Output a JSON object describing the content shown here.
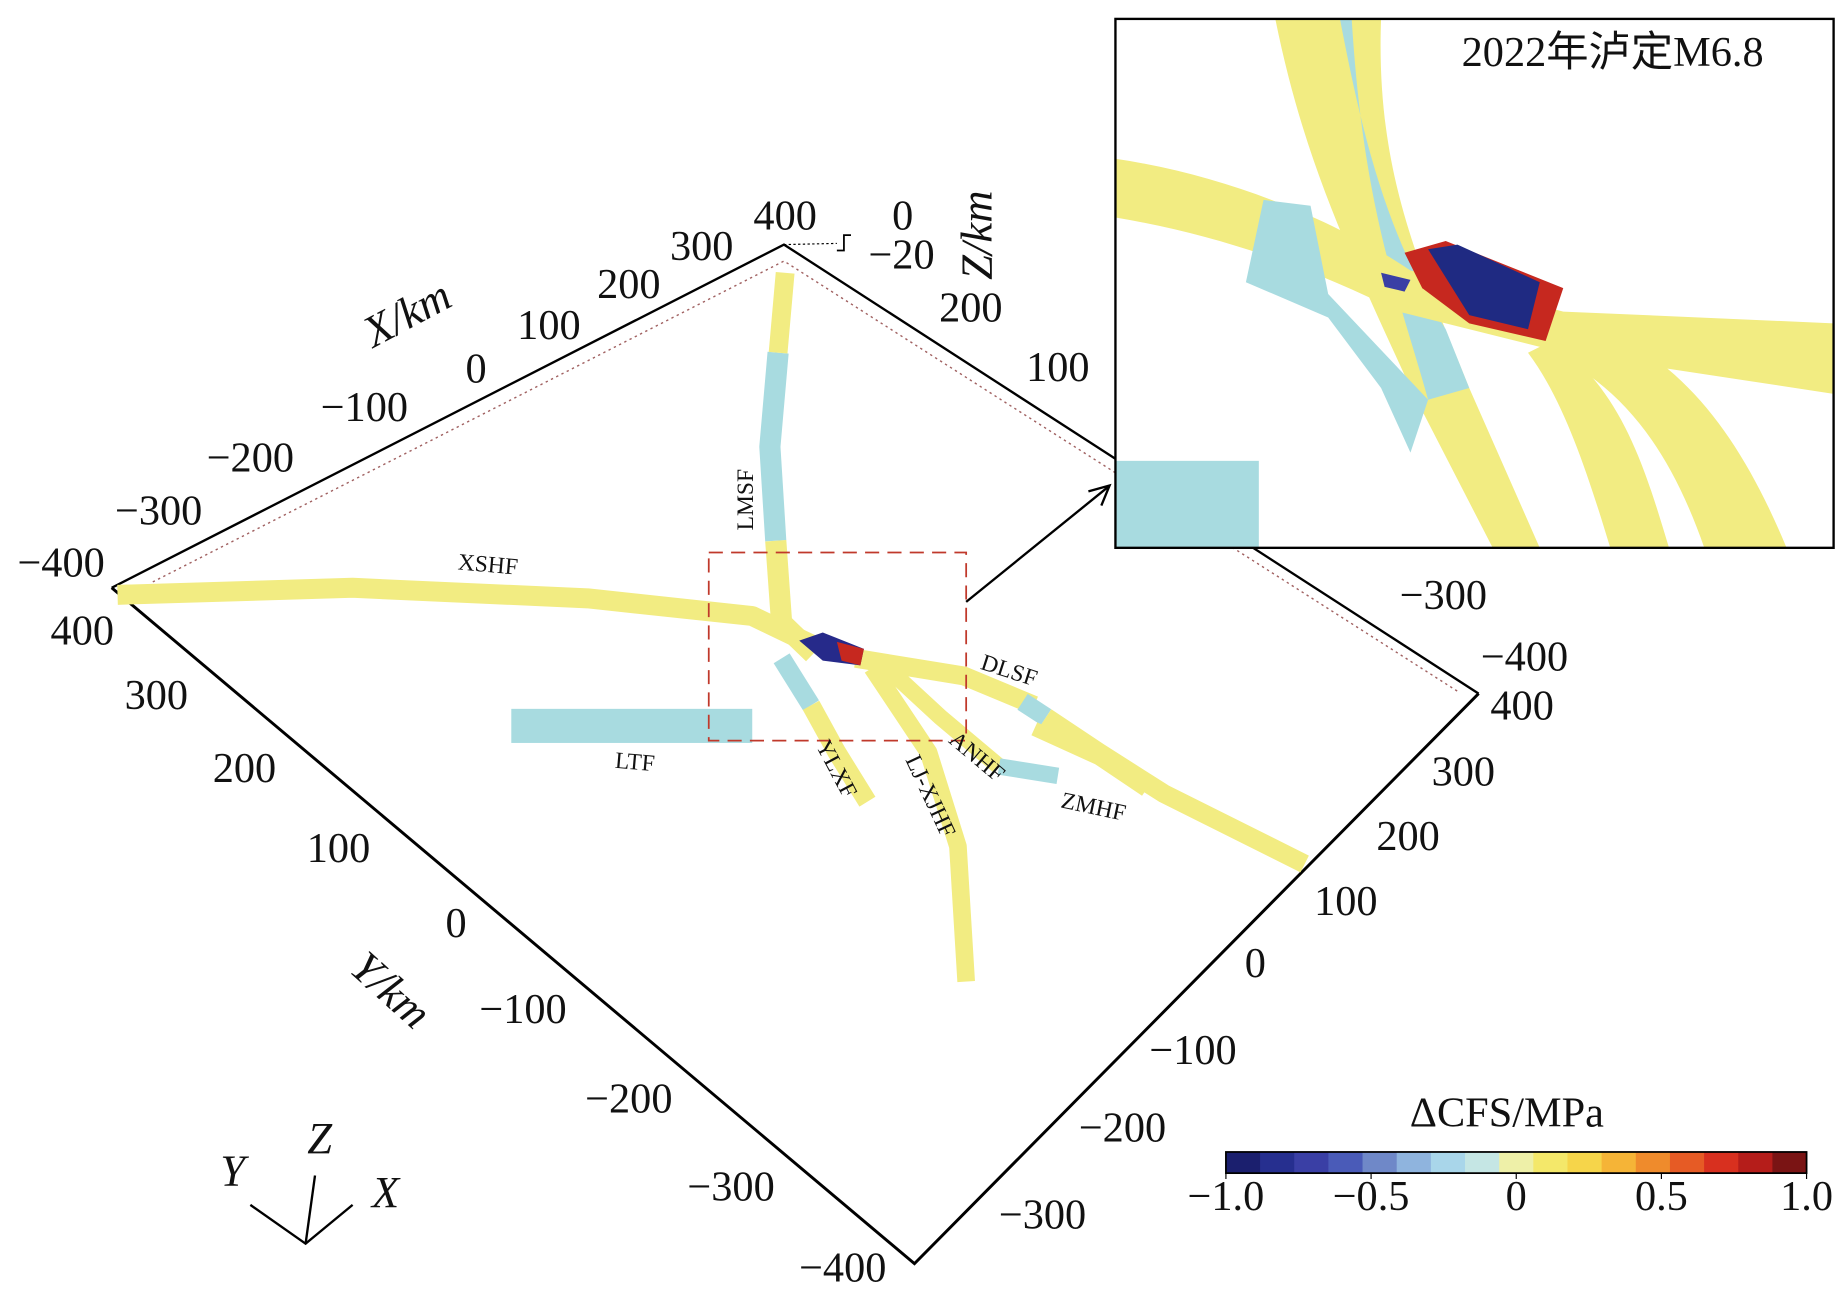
{
  "axes": {
    "x": {
      "label": "X/km",
      "ticks": [
        "−400",
        "−300",
        "−200",
        "−100",
        "0",
        "100",
        "200",
        "300",
        "400"
      ]
    },
    "x_far": {
      "ticks": [
        "200",
        "100",
        "−300",
        "−400"
      ]
    },
    "y": {
      "label": "Y/km",
      "ticks": [
        "400",
        "300",
        "200",
        "100",
        "0",
        "−100",
        "−200",
        "−300",
        "−400"
      ]
    },
    "y_far": {
      "ticks": [
        "400",
        "300",
        "200",
        "100",
        "0",
        "−100",
        "−200",
        "−300"
      ]
    },
    "z": {
      "label": "Z/km",
      "ticks": [
        "0",
        "−20"
      ]
    }
  },
  "faults": [
    "XSHF",
    "LMSF",
    "LTF",
    "YLXF",
    "LJ-XJHF",
    "ANHF",
    "DLSF",
    "ZMHF"
  ],
  "inset": {
    "title": "2022年泸定M6.8"
  },
  "colorbar": {
    "label": "ΔCFS/MPa",
    "lim": [
      -1,
      1
    ],
    "ticks": [
      {
        "value": -1,
        "label": "−1.0"
      },
      {
        "value": -0.5,
        "label": "−0.5"
      },
      0,
      0.5,
      {
        "value": 1,
        "label": "1.0"
      }
    ],
    "colors": [
      "#1b1f6e",
      "#262f8f",
      "#3a3fa5",
      "#4a5bb8",
      "#6f88c8",
      "#8fb4de",
      "#a9d6ea",
      "#c5e6e4",
      "#eef0a8",
      "#f4e86a",
      "#f6d54a",
      "#f5b437",
      "#ef8b2c",
      "#e65b25",
      "#d8301f",
      "#b51d1a",
      "#7a1414"
    ]
  },
  "orientation": [
    "Y",
    "Z",
    "X"
  ]
}
